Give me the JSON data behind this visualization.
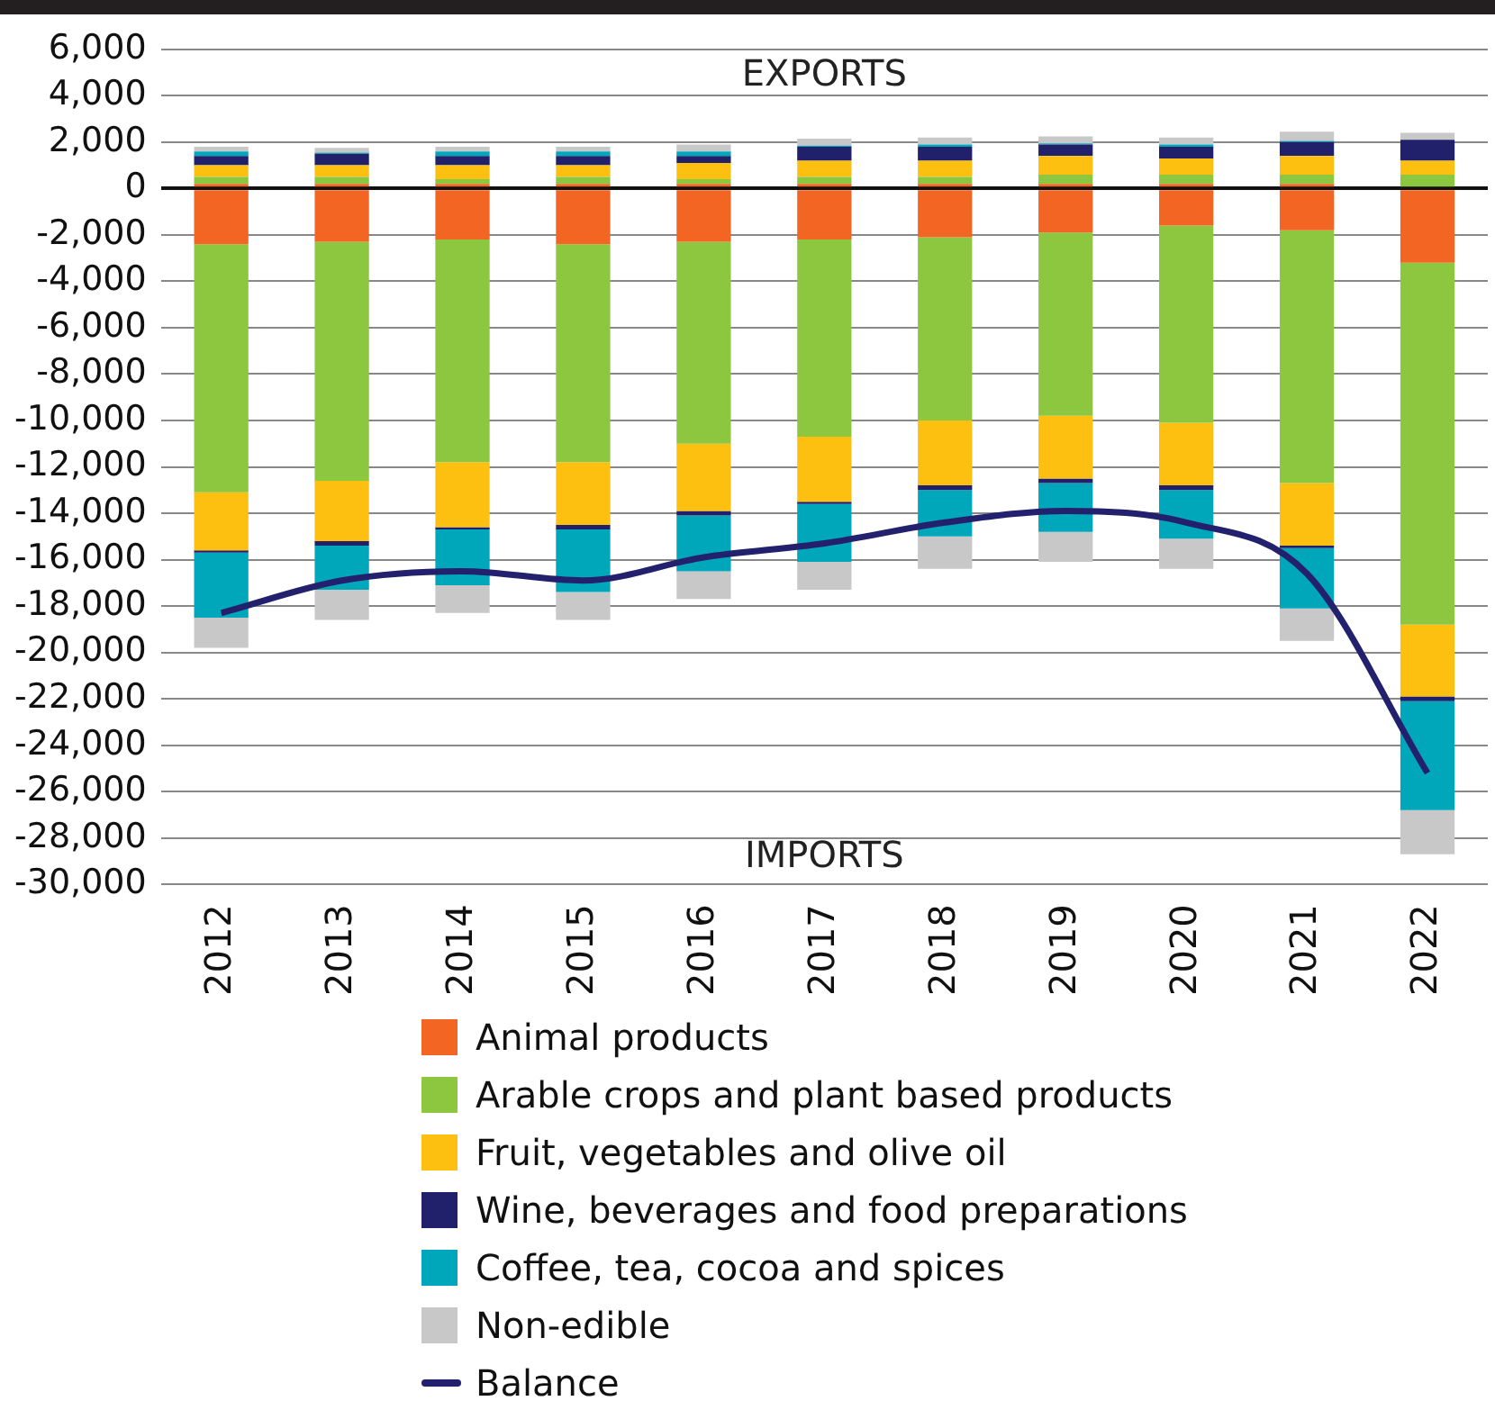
{
  "chart_data": {
    "type": "bar",
    "stacked": true,
    "categories": [
      "2012",
      "2013",
      "2014",
      "2015",
      "2016",
      "2017",
      "2018",
      "2019",
      "2020",
      "2021",
      "2022"
    ],
    "series": [
      {
        "color": "#f26522",
        "values": [
          200,
          200,
          200,
          200,
          200,
          200,
          200,
          200,
          200,
          200,
          0
        ]
      },
      {
        "color": "#8dc63f",
        "values": [
          300,
          300,
          200,
          300,
          200,
          300,
          300,
          400,
          400,
          400,
          600
        ]
      },
      {
        "color": "#fdc010",
        "values": [
          500,
          500,
          600,
          500,
          700,
          700,
          700,
          800,
          700,
          800,
          600
        ]
      },
      {
        "color": "#21206b",
        "values": [
          400,
          500,
          400,
          400,
          300,
          600,
          600,
          500,
          500,
          600,
          900
        ]
      },
      {
        "color": "#00a6b9",
        "values": [
          200,
          50,
          200,
          200,
          200,
          50,
          100,
          50,
          100,
          50,
          0
        ]
      },
      {
        "color": "#c8c8c8",
        "values": [
          200,
          200,
          200,
          200,
          300,
          300,
          300,
          300,
          300,
          400,
          300
        ]
      },
      {
        "name": "Animal products",
        "color": "#f26522",
        "values": [
          -2400,
          -2300,
          -2200,
          -2400,
          -2300,
          -2200,
          -2100,
          -1900,
          -1600,
          -1800,
          -3200
        ]
      },
      {
        "name": "Arable crops and plant based products",
        "color": "#8dc63f",
        "values": [
          -10700,
          -10300,
          -9600,
          -9400,
          -8700,
          -8500,
          -7900,
          -7900,
          -8500,
          -10900,
          -15600
        ]
      },
      {
        "name": "Fruit, vegetables and olive oil",
        "color": "#fdc010",
        "values": [
          -2500,
          -2600,
          -2800,
          -2700,
          -2900,
          -2800,
          -2800,
          -2700,
          -2700,
          -2700,
          -3100
        ]
      },
      {
        "name": "Wine, beverages and food preparations",
        "color": "#21206b",
        "values": [
          -100,
          -200,
          -100,
          -200,
          -200,
          -100,
          -200,
          -200,
          -200,
          -100,
          -200
        ]
      },
      {
        "name": "Coffee, tea, cocoa and spices",
        "color": "#00a6b9",
        "values": [
          -2800,
          -1900,
          -2400,
          -2700,
          -2400,
          -2500,
          -2000,
          -2100,
          -2100,
          -2600,
          -4700
        ]
      },
      {
        "name": "Non-edible",
        "color": "#c8c8c8",
        "values": [
          -1300,
          -1300,
          -1200,
          -1200,
          -1200,
          -1200,
          -1400,
          -1300,
          -1300,
          -1400,
          -1900
        ]
      },
      {
        "name": "Balance",
        "type": "line",
        "color": "#23216e",
        "values": [
          -18300,
          -16900,
          -16500,
          -16900,
          -15900,
          -15300,
          -14400,
          -13900,
          -14400,
          -16600,
          -25200
        ]
      }
    ],
    "ylim": [
      -30000,
      6000
    ],
    "yticks": [
      {
        "value": -30000,
        "label": "-30,000"
      },
      {
        "value": -28000,
        "label": "-28,000"
      },
      {
        "value": -26000,
        "label": "-26,000"
      },
      {
        "value": -24000,
        "label": "-24,000"
      },
      {
        "value": -22000,
        "label": "-22,000"
      },
      {
        "value": -20000,
        "label": "-20,000"
      },
      {
        "value": -18000,
        "label": "-18,000"
      },
      {
        "value": -16000,
        "label": "-16,000"
      },
      {
        "value": -14000,
        "label": "-14,000"
      },
      {
        "value": -12000,
        "label": "-12,000"
      },
      {
        "value": -10000,
        "label": "-10,000"
      },
      {
        "value": -8000,
        "label": "-8,000"
      },
      {
        "value": -6000,
        "label": "-6,000"
      },
      {
        "value": -4000,
        "label": "-4,000"
      },
      {
        "value": -2000,
        "label": "-2,000"
      },
      0,
      {
        "value": 2000,
        "label": "2,000"
      },
      {
        "value": 4000,
        "label": "4,000"
      },
      {
        "value": 6000,
        "label": "6,000"
      }
    ],
    "grid": "y",
    "legend": "bottom",
    "annotations": [
      "EXPORTS",
      "IMPORTS"
    ]
  }
}
